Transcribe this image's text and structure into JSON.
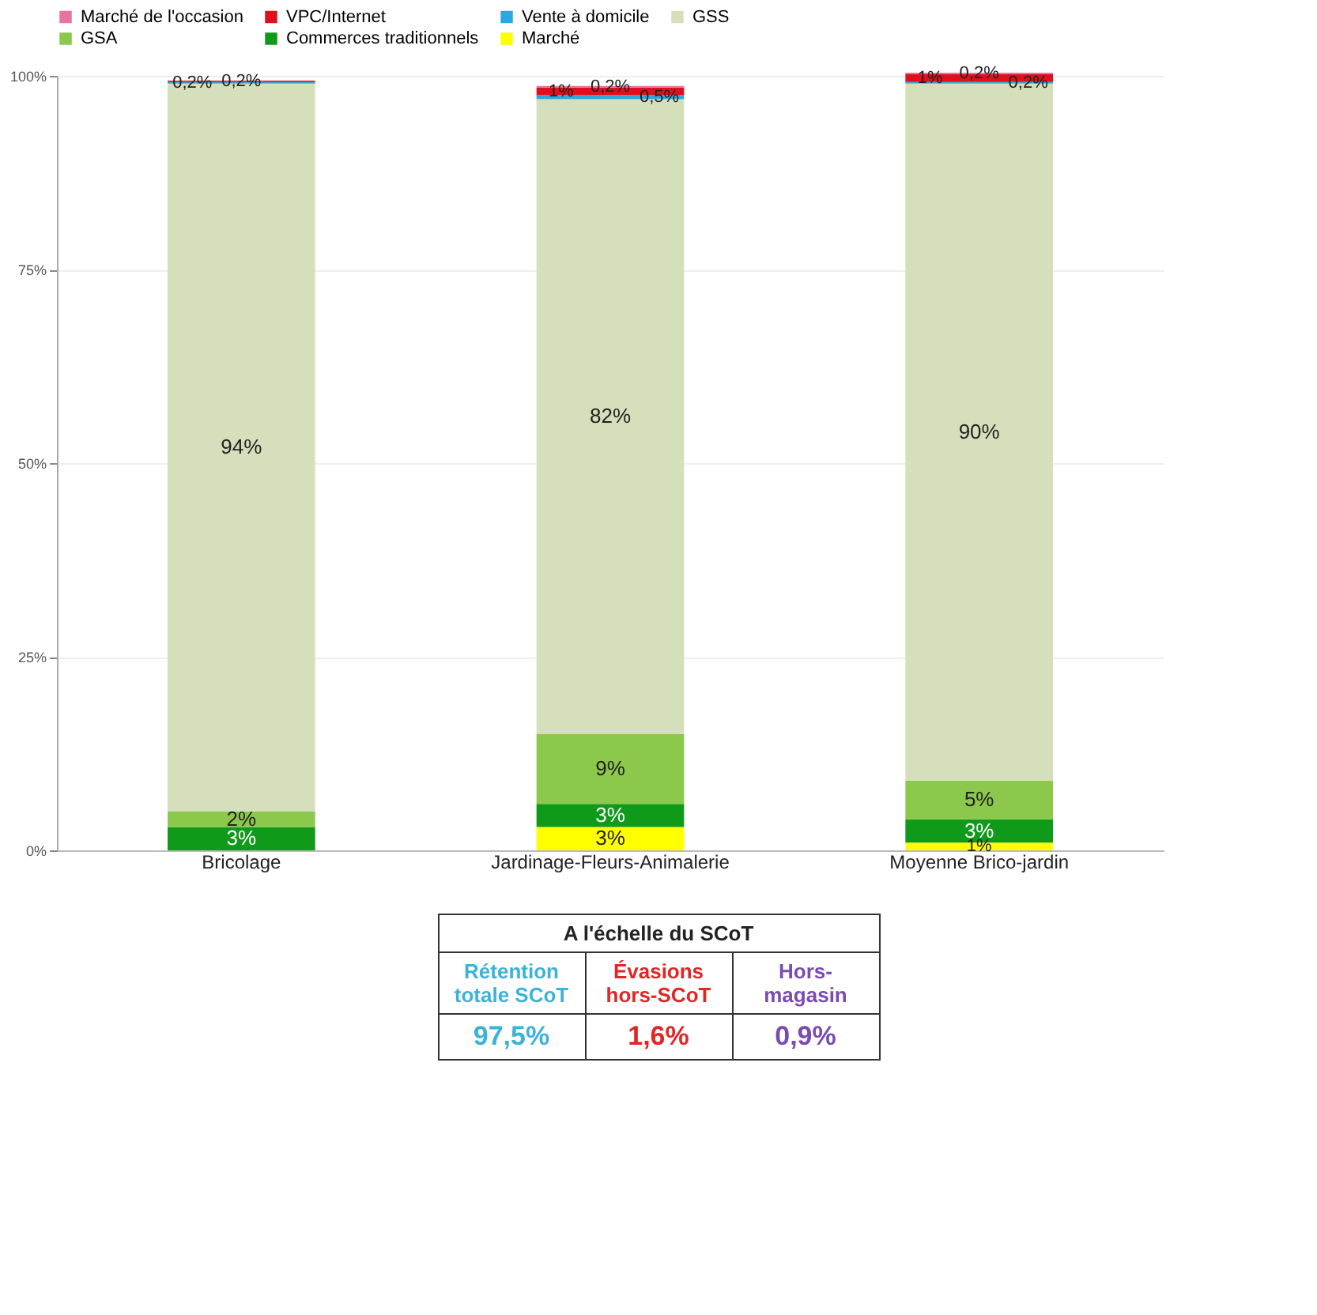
{
  "chart_data": {
    "type": "bar",
    "stacked": true,
    "categories": [
      "Bricolage",
      "Jardinage-Fleurs-Animalerie",
      "Moyenne Brico-jardin"
    ],
    "series": [
      {
        "name": "Marché",
        "color": "#ffff00",
        "values": [
          null,
          3,
          1
        ],
        "value_labels": [
          null,
          "3%",
          "1%"
        ]
      },
      {
        "name": "Commerces traditionnels",
        "color": "#0f9a1a",
        "values": [
          3,
          3,
          3
        ],
        "value_labels": [
          "3%",
          "3%",
          "3%"
        ]
      },
      {
        "name": "GSA",
        "color": "#8cc84b",
        "values": [
          2,
          9,
          5
        ],
        "value_labels": [
          "2%",
          "9%",
          "5%"
        ]
      },
      {
        "name": "GSS",
        "color": "#d6dfbb",
        "values": [
          94,
          82,
          90
        ],
        "value_labels": [
          "94%",
          "82%",
          "90%"
        ]
      },
      {
        "name": "Vente à domicile",
        "color": "#29a9e0",
        "values": [
          0.2,
          0.5,
          0.2
        ],
        "value_labels": [
          "0,2%",
          "0,5%",
          "0,2%"
        ]
      },
      {
        "name": "VPC/Internet",
        "color": "#e0101a",
        "values": [
          0.2,
          1,
          1
        ],
        "value_labels": [
          "0,2%",
          "1%",
          "1%"
        ]
      },
      {
        "name": "Marché de l'occasion",
        "color": "#e8739e",
        "values": [
          null,
          0.2,
          0.2
        ],
        "value_labels": [
          null,
          "0,2%",
          "0,2%"
        ]
      }
    ],
    "ylim": [
      0,
      100
    ],
    "yticks": [
      {
        "value": 0,
        "label": "0%"
      },
      {
        "value": 25,
        "label": "25%"
      },
      {
        "value": 50,
        "label": "50%"
      },
      {
        "value": 75,
        "label": "75%"
      },
      {
        "value": 100,
        "label": "100%"
      }
    ],
    "grid": "y",
    "legend": "top",
    "data_labels": true,
    "annotations": [
      "A l'échelle du SCoT",
      "Rétention totale SCoT",
      "Évasions hors-SCoT",
      "Hors-magasin",
      "97,5%",
      "1,6%",
      "0,9%"
    ]
  }
}
